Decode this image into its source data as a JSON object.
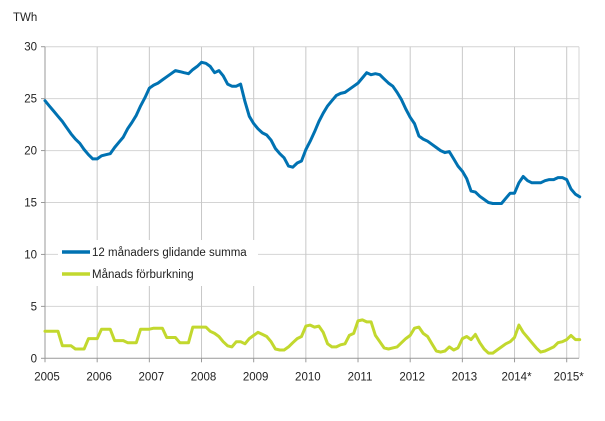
{
  "chart_data": {
    "type": "line",
    "title": "",
    "ylabel": "TWh",
    "xlabel": "",
    "ylim": [
      0,
      30
    ],
    "yticks": [
      0,
      5,
      10,
      15,
      20,
      25,
      30
    ],
    "xticks": [
      "2005",
      "2006",
      "2007",
      "2008",
      "2009",
      "2010",
      "2011",
      "2012",
      "2013",
      "2014*",
      "2015*"
    ],
    "x_start": "2005-01",
    "x_frequency": "monthly",
    "grid": true,
    "legend_position": "center-left",
    "series": [
      {
        "name": "12 månaders glidande summa",
        "color": "#0072b2",
        "values": [
          24.8,
          24.3,
          23.8,
          23.3,
          22.8,
          22.2,
          21.6,
          21.1,
          20.7,
          20.1,
          19.6,
          19.2,
          19.2,
          19.5,
          19.6,
          19.7,
          20.3,
          20.8,
          21.3,
          22.1,
          22.7,
          23.4,
          24.3,
          25.1,
          26.0,
          26.3,
          26.5,
          26.8,
          27.1,
          27.4,
          27.7,
          27.6,
          27.5,
          27.4,
          27.8,
          28.1,
          28.5,
          28.4,
          28.1,
          27.5,
          27.7,
          27.2,
          26.4,
          26.2,
          26.2,
          26.4,
          24.7,
          23.3,
          22.6,
          22.1,
          21.7,
          21.5,
          21.0,
          20.2,
          19.7,
          19.3,
          18.5,
          18.4,
          18.8,
          19.0,
          20.1,
          20.9,
          21.8,
          22.8,
          23.6,
          24.3,
          24.8,
          25.3,
          25.5,
          25.6,
          25.9,
          26.2,
          26.5,
          27.0,
          27.5,
          27.3,
          27.4,
          27.3,
          26.9,
          26.5,
          26.2,
          25.6,
          24.9,
          24.0,
          23.2,
          22.6,
          21.4,
          21.1,
          20.9,
          20.6,
          20.3,
          20.0,
          19.8,
          19.9,
          19.2,
          18.5,
          18.0,
          17.3,
          16.1,
          16.0,
          15.6,
          15.3,
          15.0,
          14.9,
          14.9,
          14.9,
          15.4,
          15.9,
          15.9,
          16.9,
          17.5,
          17.1,
          16.9,
          16.9,
          16.9,
          17.1,
          17.2,
          17.2,
          17.4,
          17.4,
          17.2,
          16.3,
          15.8,
          15.55
        ]
      },
      {
        "name": "Månads förburkning",
        "color": "#c2d82e",
        "values": [
          2.6,
          2.6,
          2.6,
          2.6,
          1.2,
          1.2,
          1.2,
          0.9,
          0.9,
          0.9,
          1.9,
          1.9,
          1.9,
          2.8,
          2.8,
          2.8,
          1.7,
          1.7,
          1.7,
          1.5,
          1.5,
          1.5,
          2.8,
          2.8,
          2.8,
          2.9,
          2.9,
          2.9,
          2.0,
          2.0,
          2.0,
          1.5,
          1.5,
          1.5,
          3.0,
          3.0,
          3.0,
          3.0,
          2.6,
          2.4,
          2.1,
          1.6,
          1.2,
          1.1,
          1.6,
          1.6,
          1.4,
          1.9,
          2.2,
          2.5,
          2.3,
          2.1,
          1.6,
          0.9,
          0.8,
          0.8,
          1.1,
          1.5,
          1.9,
          2.1,
          3.1,
          3.2,
          3.0,
          3.1,
          2.5,
          1.4,
          1.1,
          1.1,
          1.3,
          1.4,
          2.2,
          2.4,
          3.6,
          3.7,
          3.5,
          3.5,
          2.2,
          1.6,
          1.0,
          0.9,
          1.0,
          1.1,
          1.5,
          1.9,
          2.2,
          2.9,
          3.0,
          2.4,
          2.1,
          1.4,
          0.7,
          0.6,
          0.7,
          1.1,
          0.8,
          1.0,
          1.9,
          2.1,
          1.8,
          2.3,
          1.5,
          0.9,
          0.5,
          0.5,
          0.8,
          1.1,
          1.4,
          1.6,
          2.0,
          3.2,
          2.5,
          2.0,
          1.5,
          1.0,
          0.6,
          0.7,
          0.9,
          1.1,
          1.5,
          1.6,
          1.8,
          2.2,
          1.8,
          1.8
        ]
      }
    ]
  }
}
